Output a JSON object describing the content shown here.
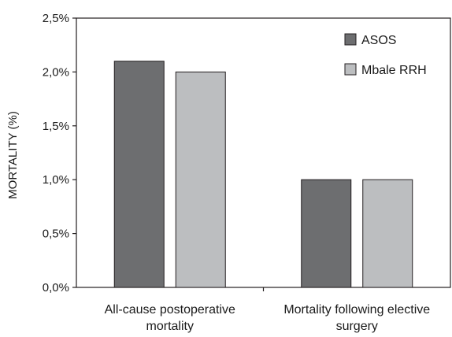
{
  "chart_data": {
    "type": "bar",
    "title": "",
    "xlabel": "",
    "ylabel": "MORTALITY (%)",
    "ylim": [
      0,
      2.5
    ],
    "yticks": [
      "0,0%",
      "0,5%",
      "1,0%",
      "1,5%",
      "2,0%",
      "2,5%"
    ],
    "categories": [
      [
        "All-cause postoperative",
        "mortality"
      ],
      [
        "Mortality following elective",
        "surgery"
      ]
    ],
    "series": [
      {
        "name": "ASOS",
        "values": [
          2.1,
          1.0
        ],
        "color": "#6d6e70"
      },
      {
        "name": "Mbale RRH",
        "values": [
          2.0,
          1.0
        ],
        "color": "#bcbec0"
      }
    ],
    "grid": false,
    "legend_position": "top-right"
  }
}
